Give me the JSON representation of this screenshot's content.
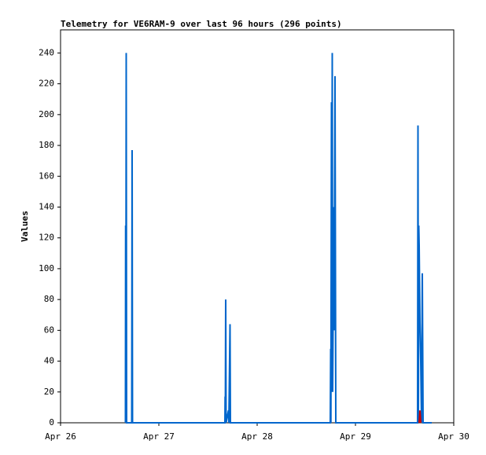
{
  "chart_data": {
    "type": "line",
    "title": "Telemetry for VE6RAM-9 over last 96 hours (296 points)",
    "y_label": "Values",
    "xlim": [
      0,
      4
    ],
    "xticks": [
      {
        "value": 0,
        "label": "Apr 26"
      },
      {
        "value": 1,
        "label": "Apr 27"
      },
      {
        "value": 2,
        "label": "Apr 28"
      },
      {
        "value": 3,
        "label": "Apr 29"
      },
      {
        "value": 4,
        "label": "Apr 30"
      }
    ],
    "ylim": [
      0,
      255
    ],
    "yticks": [
      0,
      20,
      40,
      60,
      80,
      100,
      120,
      140,
      160,
      180,
      200,
      220,
      240
    ],
    "series": [
      {
        "color": "#0066cc",
        "x": [
          0.66,
          0.662,
          0.664,
          0.668,
          0.672,
          0.724,
          0.728,
          0.732,
          1.672,
          1.674,
          1.676,
          1.68,
          1.684,
          1.708,
          1.712,
          1.724,
          1.728,
          2.744,
          2.748,
          2.75,
          2.756,
          2.758,
          2.764,
          2.768,
          2.776,
          2.78,
          2.784,
          2.792,
          2.796,
          2.8,
          3.632,
          3.636,
          3.64,
          3.644,
          3.648,
          3.652,
          3.656,
          3.664,
          3.672,
          3.68,
          3.684,
          3.688,
          3.776
        ],
        "values": [
          0,
          128,
          0,
          240,
          0,
          0,
          177,
          0,
          0,
          17,
          0,
          80,
          0,
          8,
          0,
          64,
          0,
          0,
          48,
          0,
          208,
          20,
          240,
          20,
          100,
          140,
          60,
          225,
          112,
          0,
          0,
          193,
          0,
          128,
          115,
          90,
          65,
          40,
          0,
          97,
          48,
          0,
          0
        ]
      },
      {
        "color": "#cc0000",
        "x": [
          3.648,
          3.656,
          3.664
        ],
        "values": [
          0,
          8,
          0
        ]
      }
    ]
  }
}
